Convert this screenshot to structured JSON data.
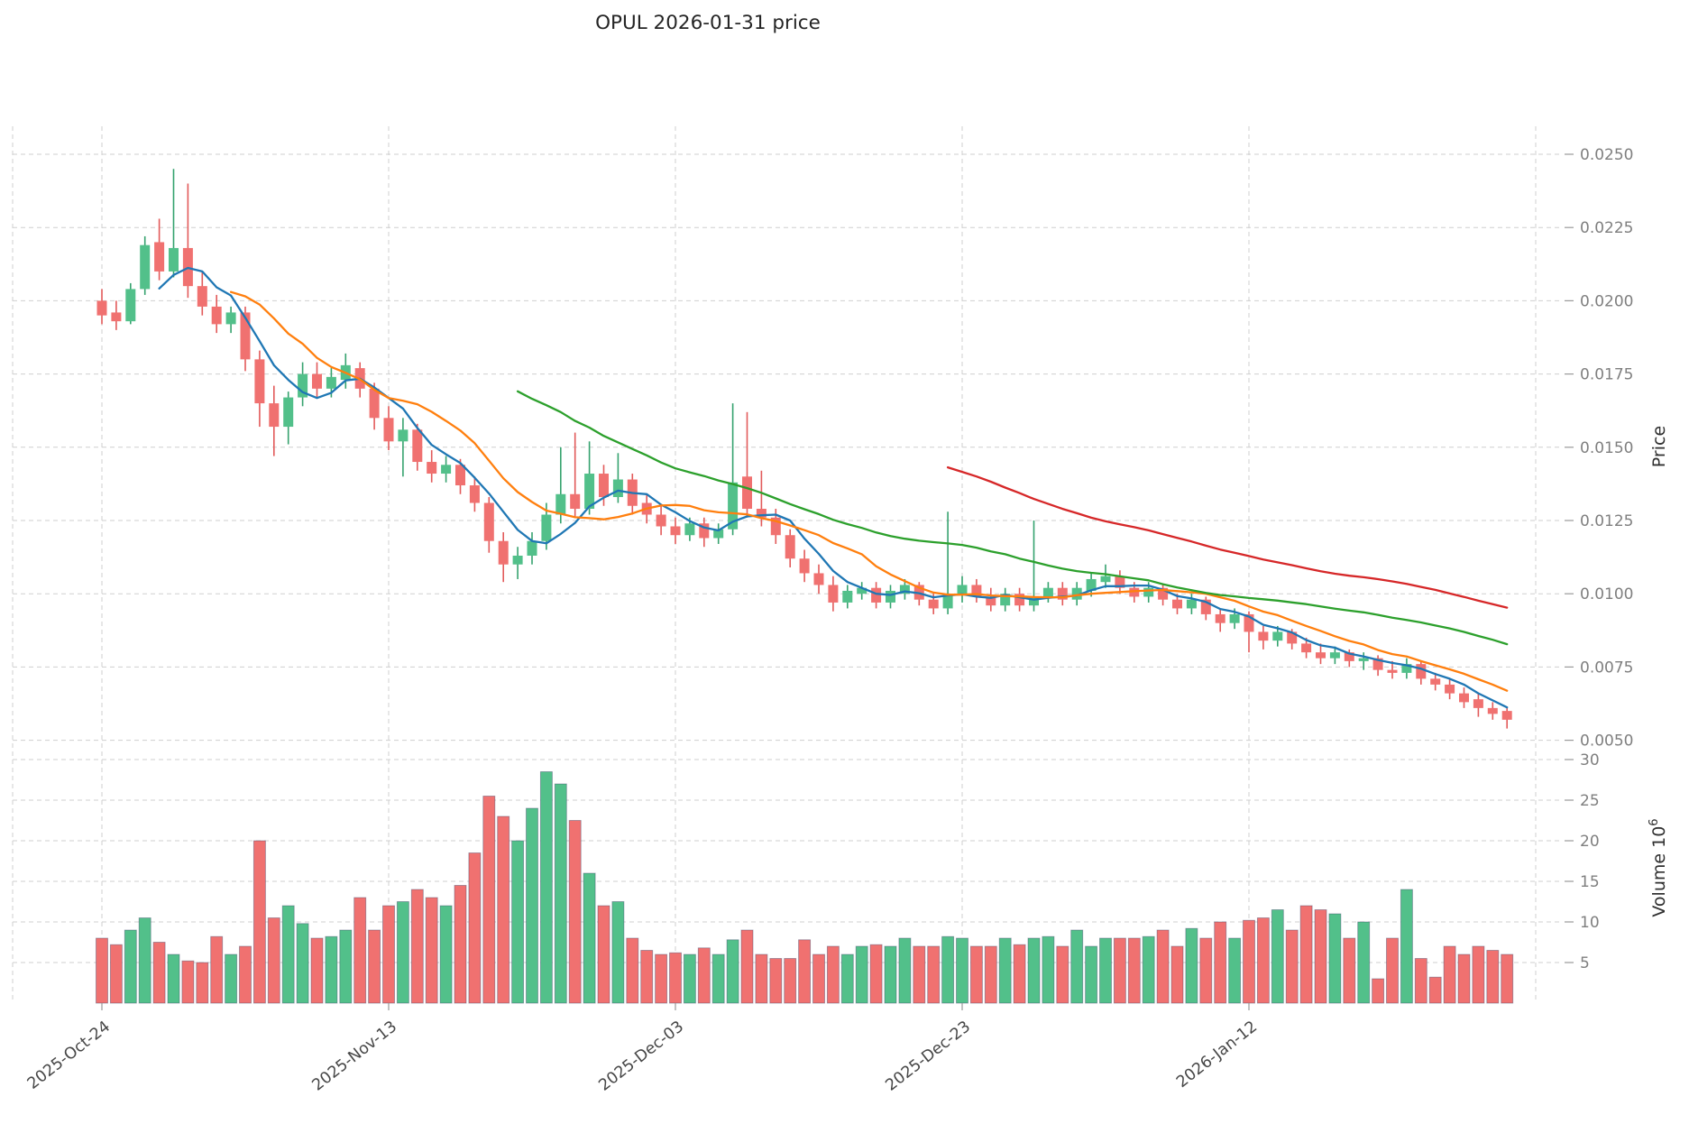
{
  "title": "OPUL 2026-01-31 price",
  "axes": {
    "price_label": "Price",
    "volume_label_base": "Volume 10",
    "volume_exponent": "6"
  },
  "colors": {
    "up": "#52c08a",
    "down": "#f07170",
    "up_wick": "#35a26e",
    "down_wick": "#e25a5a",
    "ma_colors": [
      "#1f77b4",
      "#ff7f0e",
      "#2ca02c",
      "#d62728"
    ],
    "grid": "#cfcfcf"
  },
  "chart_data": {
    "type": "candlestick+volume",
    "symbol": "OPUL",
    "as_of_date": "2026-01-31",
    "grid": "dashed",
    "price_axis": {
      "label": "Price",
      "side": "right",
      "ticks": [
        0.005,
        0.0075,
        0.01,
        0.0125,
        0.015,
        0.0175,
        0.02,
        0.0225,
        0.025
      ],
      "range": [
        0.0047,
        0.0258
      ]
    },
    "volume_axis": {
      "label": "Volume 10^6",
      "side": "right",
      "unit_millions": true,
      "ticks": [
        5,
        10,
        15,
        20,
        25,
        30
      ],
      "range": [
        0,
        31
      ]
    },
    "x_axis": {
      "tick_labels": [
        "2025-Oct-24",
        "2025-Nov-13",
        "2025-Dec-03",
        "2025-Dec-23",
        "2026-Jan-12"
      ],
      "tick_indices": [
        0,
        20,
        40,
        60,
        80
      ]
    },
    "moving_averages": [
      {
        "window": 5,
        "color": "#1f77b4"
      },
      {
        "window": 10,
        "color": "#ff7f0e"
      },
      {
        "window": 30,
        "color": "#2ca02c"
      },
      {
        "window": 60,
        "color": "#d62728"
      }
    ],
    "columns": [
      "date",
      "open",
      "high",
      "low",
      "close",
      "volume_millions"
    ],
    "candles": [
      [
        "2025-10-24",
        0.02,
        0.0204,
        0.0192,
        0.0195,
        8.0
      ],
      [
        "2025-10-25",
        0.0196,
        0.02,
        0.019,
        0.0193,
        7.2
      ],
      [
        "2025-10-26",
        0.0193,
        0.0206,
        0.0192,
        0.0204,
        9.0
      ],
      [
        "2025-10-27",
        0.0204,
        0.0222,
        0.0202,
        0.0219,
        10.5
      ],
      [
        "2025-10-28",
        0.022,
        0.0228,
        0.0207,
        0.021,
        7.5
      ],
      [
        "2025-10-29",
        0.021,
        0.0245,
        0.0208,
        0.0218,
        6.0
      ],
      [
        "2025-10-30",
        0.0218,
        0.024,
        0.0201,
        0.0205,
        5.2
      ],
      [
        "2025-10-31",
        0.0205,
        0.021,
        0.0195,
        0.0198,
        5.0
      ],
      [
        "2025-11-01",
        0.0198,
        0.0202,
        0.0189,
        0.0192,
        8.2
      ],
      [
        "2025-11-02",
        0.0192,
        0.0198,
        0.0189,
        0.0196,
        6.0
      ],
      [
        "2025-11-03",
        0.0196,
        0.0198,
        0.0176,
        0.018,
        7.0
      ],
      [
        "2025-11-04",
        0.018,
        0.0183,
        0.0157,
        0.0165,
        20.0
      ],
      [
        "2025-11-05",
        0.0165,
        0.0171,
        0.0147,
        0.0157,
        10.5
      ],
      [
        "2025-11-06",
        0.0157,
        0.0169,
        0.0151,
        0.0167,
        12.0
      ],
      [
        "2025-11-07",
        0.0167,
        0.0179,
        0.0164,
        0.0175,
        9.8
      ],
      [
        "2025-11-08",
        0.0175,
        0.0179,
        0.0167,
        0.017,
        8.0
      ],
      [
        "2025-11-09",
        0.017,
        0.0177,
        0.0167,
        0.0174,
        8.2
      ],
      [
        "2025-11-10",
        0.0173,
        0.0182,
        0.017,
        0.0178,
        9.0
      ],
      [
        "2025-11-11",
        0.0177,
        0.0179,
        0.0167,
        0.017,
        13.0
      ],
      [
        "2025-11-12",
        0.017,
        0.0172,
        0.0156,
        0.016,
        9.0
      ],
      [
        "2025-11-13",
        0.016,
        0.0164,
        0.0149,
        0.0152,
        12.0
      ],
      [
        "2025-11-14",
        0.0152,
        0.016,
        0.014,
        0.0156,
        12.5
      ],
      [
        "2025-11-15",
        0.0156,
        0.0158,
        0.0142,
        0.0145,
        14.0
      ],
      [
        "2025-11-16",
        0.0145,
        0.0149,
        0.0138,
        0.0141,
        13.0
      ],
      [
        "2025-11-17",
        0.0141,
        0.0147,
        0.0138,
        0.0144,
        12.0
      ],
      [
        "2025-11-18",
        0.0144,
        0.0146,
        0.0134,
        0.0137,
        14.5
      ],
      [
        "2025-11-19",
        0.0137,
        0.014,
        0.0128,
        0.0131,
        18.5
      ],
      [
        "2025-11-20",
        0.0131,
        0.0133,
        0.0114,
        0.0118,
        25.5
      ],
      [
        "2025-11-21",
        0.0118,
        0.0121,
        0.0104,
        0.011,
        23.0
      ],
      [
        "2025-11-22",
        0.011,
        0.0116,
        0.0105,
        0.0113,
        20.0
      ],
      [
        "2025-11-23",
        0.0113,
        0.0121,
        0.011,
        0.0118,
        24.0
      ],
      [
        "2025-11-24",
        0.0118,
        0.0131,
        0.0115,
        0.0127,
        28.5
      ],
      [
        "2025-11-25",
        0.0127,
        0.015,
        0.0124,
        0.0134,
        27.0
      ],
      [
        "2025-11-26",
        0.0134,
        0.0155,
        0.0126,
        0.0129,
        22.5
      ],
      [
        "2025-11-27",
        0.0129,
        0.0152,
        0.0127,
        0.0141,
        16.0
      ],
      [
        "2025-11-28",
        0.0141,
        0.0144,
        0.013,
        0.0133,
        12.0
      ],
      [
        "2025-11-29",
        0.0133,
        0.0148,
        0.0131,
        0.0139,
        12.5
      ],
      [
        "2025-11-30",
        0.0139,
        0.0141,
        0.0127,
        0.013,
        8.0
      ],
      [
        "2025-12-01",
        0.0131,
        0.0134,
        0.0124,
        0.0127,
        6.5
      ],
      [
        "2025-12-02",
        0.0127,
        0.013,
        0.012,
        0.0123,
        6.0
      ],
      [
        "2025-12-03",
        0.0123,
        0.0126,
        0.0117,
        0.012,
        6.2
      ],
      [
        "2025-12-04",
        0.012,
        0.0126,
        0.0118,
        0.0124,
        6.0
      ],
      [
        "2025-12-05",
        0.0124,
        0.0126,
        0.0116,
        0.0119,
        6.8
      ],
      [
        "2025-12-06",
        0.0119,
        0.0124,
        0.0117,
        0.0122,
        6.0
      ],
      [
        "2025-12-07",
        0.0122,
        0.0165,
        0.012,
        0.0138,
        7.8
      ],
      [
        "2025-12-08",
        0.014,
        0.0162,
        0.0126,
        0.0129,
        9.0
      ],
      [
        "2025-12-09",
        0.0129,
        0.0142,
        0.0123,
        0.0126,
        6.0
      ],
      [
        "2025-12-10",
        0.0126,
        0.0129,
        0.0117,
        0.012,
        5.5
      ],
      [
        "2025-12-11",
        0.012,
        0.0122,
        0.0109,
        0.0112,
        5.5
      ],
      [
        "2025-12-12",
        0.0112,
        0.0115,
        0.0104,
        0.0107,
        7.8
      ],
      [
        "2025-12-13",
        0.0107,
        0.011,
        0.01,
        0.0103,
        6.0
      ],
      [
        "2025-12-14",
        0.0103,
        0.0106,
        0.0094,
        0.0097,
        7.0
      ],
      [
        "2025-12-15",
        0.0097,
        0.0103,
        0.0095,
        0.0101,
        6.0
      ],
      [
        "2025-12-16",
        0.01,
        0.0104,
        0.0098,
        0.0102,
        7.0
      ],
      [
        "2025-12-17",
        0.0102,
        0.0104,
        0.0095,
        0.0097,
        7.2
      ],
      [
        "2025-12-18",
        0.0097,
        0.0103,
        0.0095,
        0.0101,
        7.0
      ],
      [
        "2025-12-19",
        0.01,
        0.0105,
        0.0098,
        0.0103,
        8.0
      ],
      [
        "2025-12-20",
        0.0103,
        0.0104,
        0.0096,
        0.0098,
        7.0
      ],
      [
        "2025-12-21",
        0.0098,
        0.01,
        0.0093,
        0.0095,
        7.0
      ],
      [
        "2025-12-22",
        0.0095,
        0.0128,
        0.0093,
        0.01,
        8.2
      ],
      [
        "2025-12-23",
        0.01,
        0.0106,
        0.0097,
        0.0103,
        8.0
      ],
      [
        "2025-12-24",
        0.0103,
        0.0105,
        0.0097,
        0.0099,
        7.0
      ],
      [
        "2025-12-25",
        0.0099,
        0.0102,
        0.0094,
        0.0096,
        7.0
      ],
      [
        "2025-12-26",
        0.0096,
        0.0102,
        0.0094,
        0.01,
        8.0
      ],
      [
        "2025-12-27",
        0.01,
        0.0102,
        0.0094,
        0.0096,
        7.2
      ],
      [
        "2025-12-28",
        0.0096,
        0.0125,
        0.0094,
        0.0099,
        8.0
      ],
      [
        "2025-12-29",
        0.0099,
        0.0104,
        0.0097,
        0.0102,
        8.2
      ],
      [
        "2025-12-30",
        0.0102,
        0.0104,
        0.0096,
        0.0098,
        7.0
      ],
      [
        "2025-12-31",
        0.0098,
        0.0104,
        0.0096,
        0.0102,
        9.0
      ],
      [
        "2026-01-01",
        0.0101,
        0.0107,
        0.0099,
        0.0105,
        7.0
      ],
      [
        "2026-01-02",
        0.0104,
        0.011,
        0.0102,
        0.0106,
        8.0
      ],
      [
        "2026-01-03",
        0.0106,
        0.0108,
        0.01,
        0.0102,
        8.0
      ],
      [
        "2026-01-04",
        0.0102,
        0.0104,
        0.0097,
        0.0099,
        8.0
      ],
      [
        "2026-01-05",
        0.0099,
        0.0104,
        0.0097,
        0.0102,
        8.2
      ],
      [
        "2026-01-06",
        0.0102,
        0.0103,
        0.0096,
        0.0098,
        9.0
      ],
      [
        "2026-01-07",
        0.0098,
        0.01,
        0.0093,
        0.0095,
        7.0
      ],
      [
        "2026-01-08",
        0.0095,
        0.01,
        0.0093,
        0.0098,
        9.2
      ],
      [
        "2026-01-09",
        0.0098,
        0.0099,
        0.0091,
        0.0093,
        8.0
      ],
      [
        "2026-01-10",
        0.0093,
        0.0095,
        0.0087,
        0.009,
        10.0
      ],
      [
        "2026-01-11",
        0.009,
        0.0095,
        0.0088,
        0.0093,
        8.0
      ],
      [
        "2026-01-12",
        0.0093,
        0.0094,
        0.008,
        0.0087,
        10.2
      ],
      [
        "2026-01-13",
        0.0087,
        0.0089,
        0.0081,
        0.0084,
        10.5
      ],
      [
        "2026-01-14",
        0.0084,
        0.0089,
        0.0082,
        0.0087,
        11.5
      ],
      [
        "2026-01-15",
        0.0087,
        0.0088,
        0.0081,
        0.0083,
        9.0
      ],
      [
        "2026-01-16",
        0.0083,
        0.0085,
        0.0078,
        0.008,
        12.0
      ],
      [
        "2026-01-17",
        0.008,
        0.0083,
        0.0076,
        0.0078,
        11.5
      ],
      [
        "2026-01-18",
        0.0078,
        0.0082,
        0.0076,
        0.008,
        11.0
      ],
      [
        "2026-01-19",
        0.008,
        0.0081,
        0.0075,
        0.0077,
        8.0
      ],
      [
        "2026-01-20",
        0.0077,
        0.008,
        0.0074,
        0.0078,
        10.0
      ],
      [
        "2026-01-21",
        0.0078,
        0.0079,
        0.0072,
        0.0074,
        3.0
      ],
      [
        "2026-01-22",
        0.0074,
        0.0077,
        0.0071,
        0.0073,
        8.0
      ],
      [
        "2026-01-23",
        0.0073,
        0.0078,
        0.0071,
        0.0076,
        14.0
      ],
      [
        "2026-01-24",
        0.0076,
        0.0077,
        0.0069,
        0.0071,
        5.5
      ],
      [
        "2026-01-25",
        0.0071,
        0.0073,
        0.0067,
        0.0069,
        3.2
      ],
      [
        "2026-01-26",
        0.0069,
        0.0071,
        0.0064,
        0.0066,
        7.0
      ],
      [
        "2026-01-27",
        0.0066,
        0.0068,
        0.0061,
        0.0063,
        6.0
      ],
      [
        "2026-01-28",
        0.0064,
        0.0066,
        0.0058,
        0.0061,
        7.0
      ],
      [
        "2026-01-29",
        0.0061,
        0.0063,
        0.0057,
        0.0059,
        6.5
      ],
      [
        "2026-01-30",
        0.006,
        0.0061,
        0.0054,
        0.0057,
        6.0
      ]
    ]
  }
}
